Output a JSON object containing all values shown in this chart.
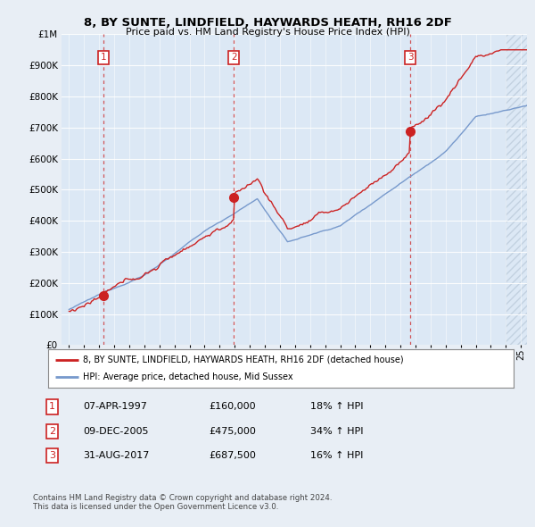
{
  "title": "8, BY SUNTE, LINDFIELD, HAYWARDS HEATH, RH16 2DF",
  "subtitle": "Price paid vs. HM Land Registry's House Price Index (HPI)",
  "background_color": "#e8eef5",
  "plot_bg_color": "#dce8f5",
  "legend_line1": "8, BY SUNTE, LINDFIELD, HAYWARDS HEATH, RH16 2DF (detached house)",
  "legend_line2": "HPI: Average price, detached house, Mid Sussex",
  "transactions": [
    {
      "num": 1,
      "date": "07-APR-1997",
      "price": 160000,
      "hpi_pct": "18%",
      "year": 1997.27
    },
    {
      "num": 2,
      "date": "09-DEC-2005",
      "price": 475000,
      "hpi_pct": "34%",
      "year": 2005.94
    },
    {
      "num": 3,
      "date": "31-AUG-2017",
      "price": 687500,
      "hpi_pct": "16%",
      "year": 2017.66
    }
  ],
  "footer1": "Contains HM Land Registry data © Crown copyright and database right 2024.",
  "footer2": "This data is licensed under the Open Government Licence v3.0.",
  "xmin": 1994.5,
  "xmax": 2025.4,
  "ymin": 0,
  "ymax": 1000000,
  "red_color": "#cc2222",
  "blue_color": "#7799cc"
}
